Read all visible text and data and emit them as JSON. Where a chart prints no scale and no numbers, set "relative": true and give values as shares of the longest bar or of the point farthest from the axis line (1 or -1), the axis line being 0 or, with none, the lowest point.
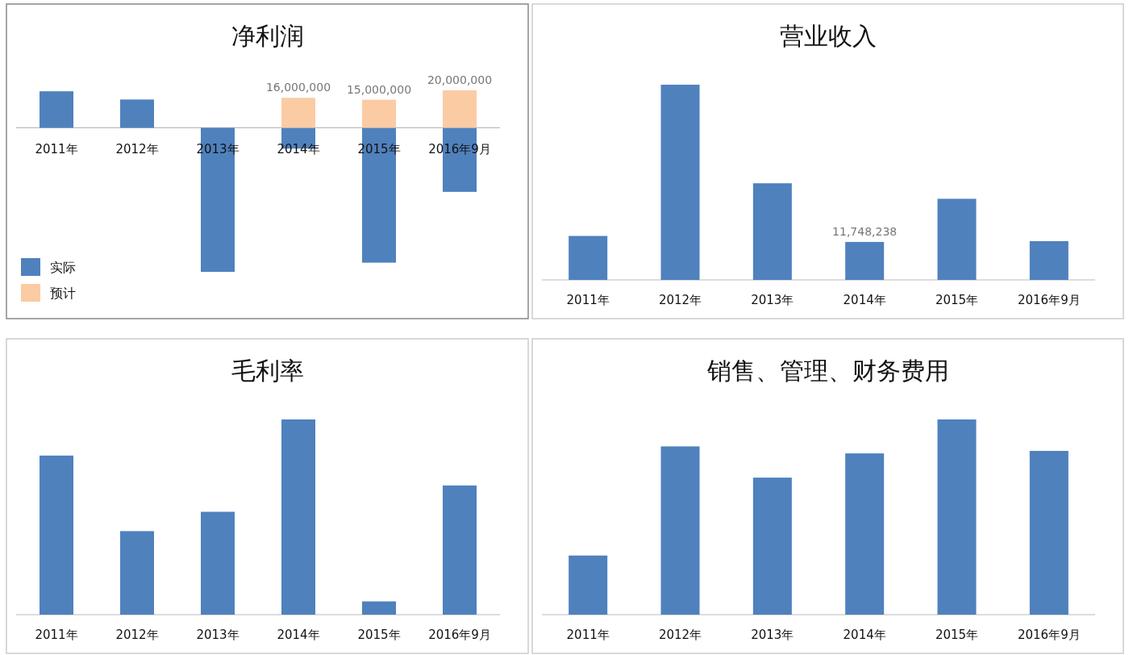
{
  "chart_data": [
    {
      "type": "bar",
      "title": "净利润",
      "stacked": true,
      "legend": "bottom left",
      "categories": [
        "2011年",
        "2012年",
        "2013年",
        "2014年",
        "2015年",
        "2016年9月"
      ],
      "series": [
        {
          "name": "实际",
          "color": "#4f81bd",
          "values": [
            19500000,
            15100000,
            -76900000,
            -11100000,
            -72000000,
            -34200000
          ]
        },
        {
          "name": "预计",
          "color": "#fbcba3",
          "values": [
            null,
            null,
            null,
            16000000,
            15000000,
            20000000
          ],
          "value_labels": [
            null,
            null,
            null,
            "16,000,000",
            "15,000,000",
            "20,000,000"
          ]
        }
      ]
    },
    {
      "type": "bar",
      "title": "营业收入",
      "categories": [
        "2011年",
        "2012年",
        "2013年",
        "2014年",
        "2015年",
        "2016年9月"
      ],
      "series": [
        {
          "color": "#4f81bd",
          "values": [
            13600000,
            60400000,
            29900000,
            11748238,
            25100000,
            12000000
          ],
          "value_labels": [
            null,
            null,
            null,
            "11,748,238",
            null,
            null
          ]
        }
      ]
    },
    {
      "type": "bar",
      "title": "毛利率",
      "relative": true,
      "categories": [
        "2011年",
        "2012年",
        "2013年",
        "2014年",
        "2015年",
        "2016年9月"
      ],
      "series": [
        {
          "color": "#4f81bd",
          "values": [
            0.815,
            0.428,
            0.527,
            1,
            0.068,
            0.662
          ]
        }
      ]
    },
    {
      "type": "bar",
      "title": "销售、管理、财务费用",
      "relative": true,
      "categories": [
        "2011年",
        "2012年",
        "2013年",
        "2014年",
        "2015年",
        "2016年9月"
      ],
      "series": [
        {
          "color": "#4f81bd",
          "values": [
            0.303,
            0.862,
            0.702,
            0.826,
            1,
            0.839
          ]
        }
      ]
    }
  ]
}
